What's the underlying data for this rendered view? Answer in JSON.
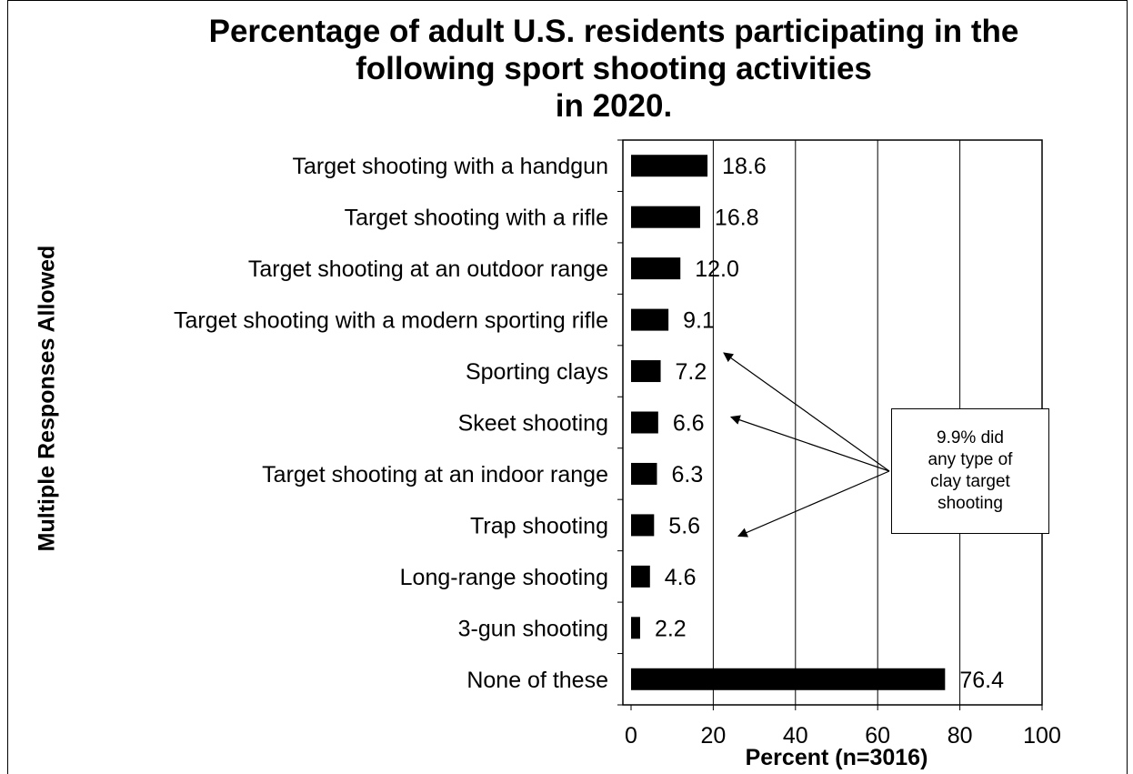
{
  "chart_data": {
    "type": "bar",
    "orientation": "horizontal",
    "title": [
      "Percentage of adult U.S. residents participating in the",
      "following sport shooting activities",
      "in 2020."
    ],
    "xlabel": "Percent (n=3016)",
    "ylabel": "Multiple Responses Allowed",
    "xlim": [
      0,
      100
    ],
    "xticks": [
      0,
      20,
      40,
      60,
      80,
      100
    ],
    "grid": "vertical",
    "categories": [
      "Target shooting with a handgun",
      "Target shooting with a rifle",
      "Target shooting at an outdoor range",
      "Target shooting with a modern sporting rifle",
      "Sporting clays",
      "Skeet shooting",
      "Target shooting at an indoor range",
      "Trap shooting",
      "Long-range shooting",
      "3-gun shooting",
      "None of these"
    ],
    "values": [
      18.6,
      16.8,
      12.0,
      9.1,
      7.2,
      6.6,
      6.3,
      5.6,
      4.6,
      2.2,
      76.4
    ],
    "value_labels": [
      "18.6",
      "16.8",
      "12.0",
      "9.1",
      "7.2",
      "6.6",
      "6.3",
      "5.6",
      "4.6",
      "2.2",
      "76.4"
    ],
    "bar_color": "#000000",
    "annotation": {
      "lines": [
        "9.9% did",
        "any type of",
        "clay target",
        "shooting"
      ],
      "points_to": [
        "Sporting clays",
        "Skeet shooting",
        "Trap shooting"
      ]
    }
  }
}
